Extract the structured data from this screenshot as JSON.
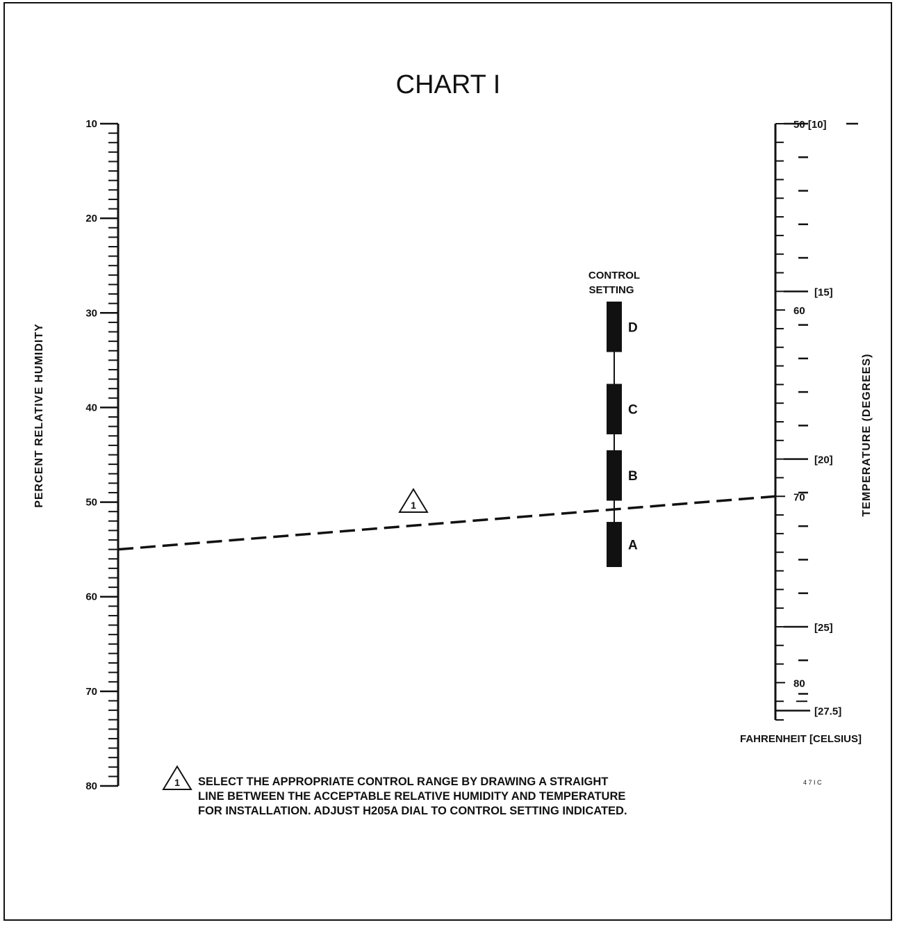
{
  "title": "CHART I",
  "humidity_scale": {
    "title": "PERCENT RELATIVE HUMIDITY",
    "min": 10,
    "max": 80,
    "labels": [
      "10",
      "20",
      "30",
      "40",
      "50",
      "60",
      "70",
      "80"
    ]
  },
  "temperature_scale": {
    "title": "TEMPERATURE (DEGREES)",
    "units_caption": "FAHRENHEIT [CELSIUS]",
    "fahrenheit_min": 50,
    "fahrenheit_max": 82,
    "fahrenheit_labels": [
      {
        "value": 50,
        "text": "50 [10]"
      },
      {
        "value": 60,
        "text": "60"
      },
      {
        "value": 70,
        "text": "70"
      },
      {
        "value": 80,
        "text": "80"
      }
    ],
    "celsius_labels": [
      {
        "value": 15,
        "text": "[15]"
      },
      {
        "value": 20,
        "text": "[20]"
      },
      {
        "value": 25,
        "text": "[25]"
      },
      {
        "value": 27.5,
        "text": "[27.5]"
      }
    ]
  },
  "control_setting": {
    "title_line1": "CONTROL",
    "title_line2": "SETTING",
    "segments": [
      {
        "label": "D",
        "from": 0.0,
        "to": 0.19
      },
      {
        "label": "C",
        "from": 0.31,
        "to": 0.5
      },
      {
        "label": "B",
        "from": 0.56,
        "to": 0.75
      },
      {
        "label": "A",
        "from": 0.83,
        "to": 1.0
      }
    ]
  },
  "example_line": {
    "humidity": 55,
    "temperature_f": 70,
    "marker": "1"
  },
  "note": {
    "marker": "1",
    "lines": [
      "SELECT THE APPROPRIATE CONTROL RANGE BY DRAWING A STRAIGHT",
      "LINE BETWEEN THE ACCEPTABLE RELATIVE HUMIDITY AND TEMPERATURE",
      "FOR INSTALLATION. ADJUST H205A DIAL TO CONTROL SETTING INDICATED."
    ]
  },
  "figure_code": "4 7 I C"
}
